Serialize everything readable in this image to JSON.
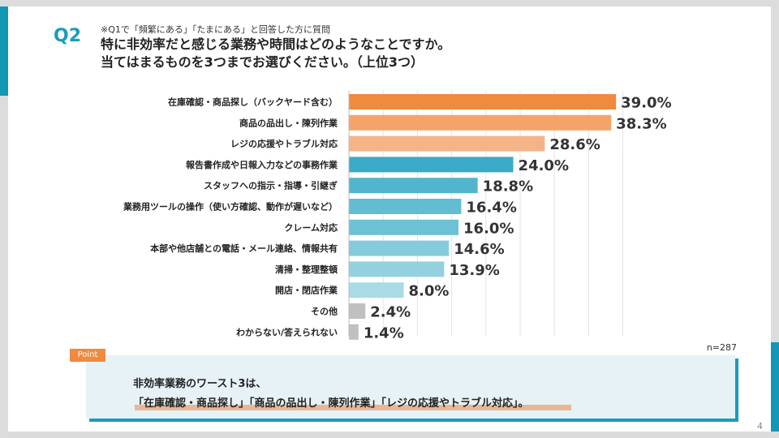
{
  "header": {
    "q_label": "Q2",
    "note": "※Q1で「頻繁にある」「たまにある」と回答した方に質問",
    "question_line1": "特に非効率だと感じる業務や時間はどのようなことですか。",
    "question_line2": "当てはまるものを3つまでお選びください。（上位3つ）"
  },
  "chart_data": {
    "type": "bar",
    "orientation": "horizontal",
    "categories": [
      "在庫確認・商品探し（バックヤード含む）",
      "商品の品出し・陳列作業",
      "レジの応援やトラブル対応",
      "報告書作成や日報入力などの事務作業",
      "スタッフへの指示・指導・引継ぎ",
      "業務用ツールの操作（使い方確認、動作が遅いなど）",
      "クレーム対応",
      "本部や他店舗との電話・メール連絡、情報共有",
      "清掃・整理整頓",
      "開店・閉店作業",
      "その他",
      "わからない/答えられない"
    ],
    "values": [
      39.0,
      38.3,
      28.6,
      24.0,
      18.8,
      16.4,
      16.0,
      14.6,
      13.9,
      8.0,
      2.4,
      1.4
    ],
    "value_labels": [
      "39.0%",
      "38.3%",
      "28.6%",
      "24.0%",
      "18.8%",
      "16.4%",
      "16.0%",
      "14.6%",
      "13.9%",
      "8.0%",
      "2.4%",
      "1.4%"
    ],
    "colors": [
      "#f08a3e",
      "#f4a469",
      "#f5b488",
      "#3aaac6",
      "#52b5cd",
      "#62bcd2",
      "#6dc1d5",
      "#86cbdc",
      "#93d1e0",
      "#a9dbe7",
      "#c0c0c0",
      "#c0c0c0"
    ],
    "xlim": [
      0,
      40
    ],
    "grid": true,
    "n_label": "n=287"
  },
  "point": {
    "tag": "Point",
    "line1": "非効率業務のワースト3は、",
    "line2": "「在庫確認・商品探し」「商品の品出し・陳列作業」「レジの応援やトラブル対応」。"
  },
  "footer": {
    "page_number": "4"
  }
}
